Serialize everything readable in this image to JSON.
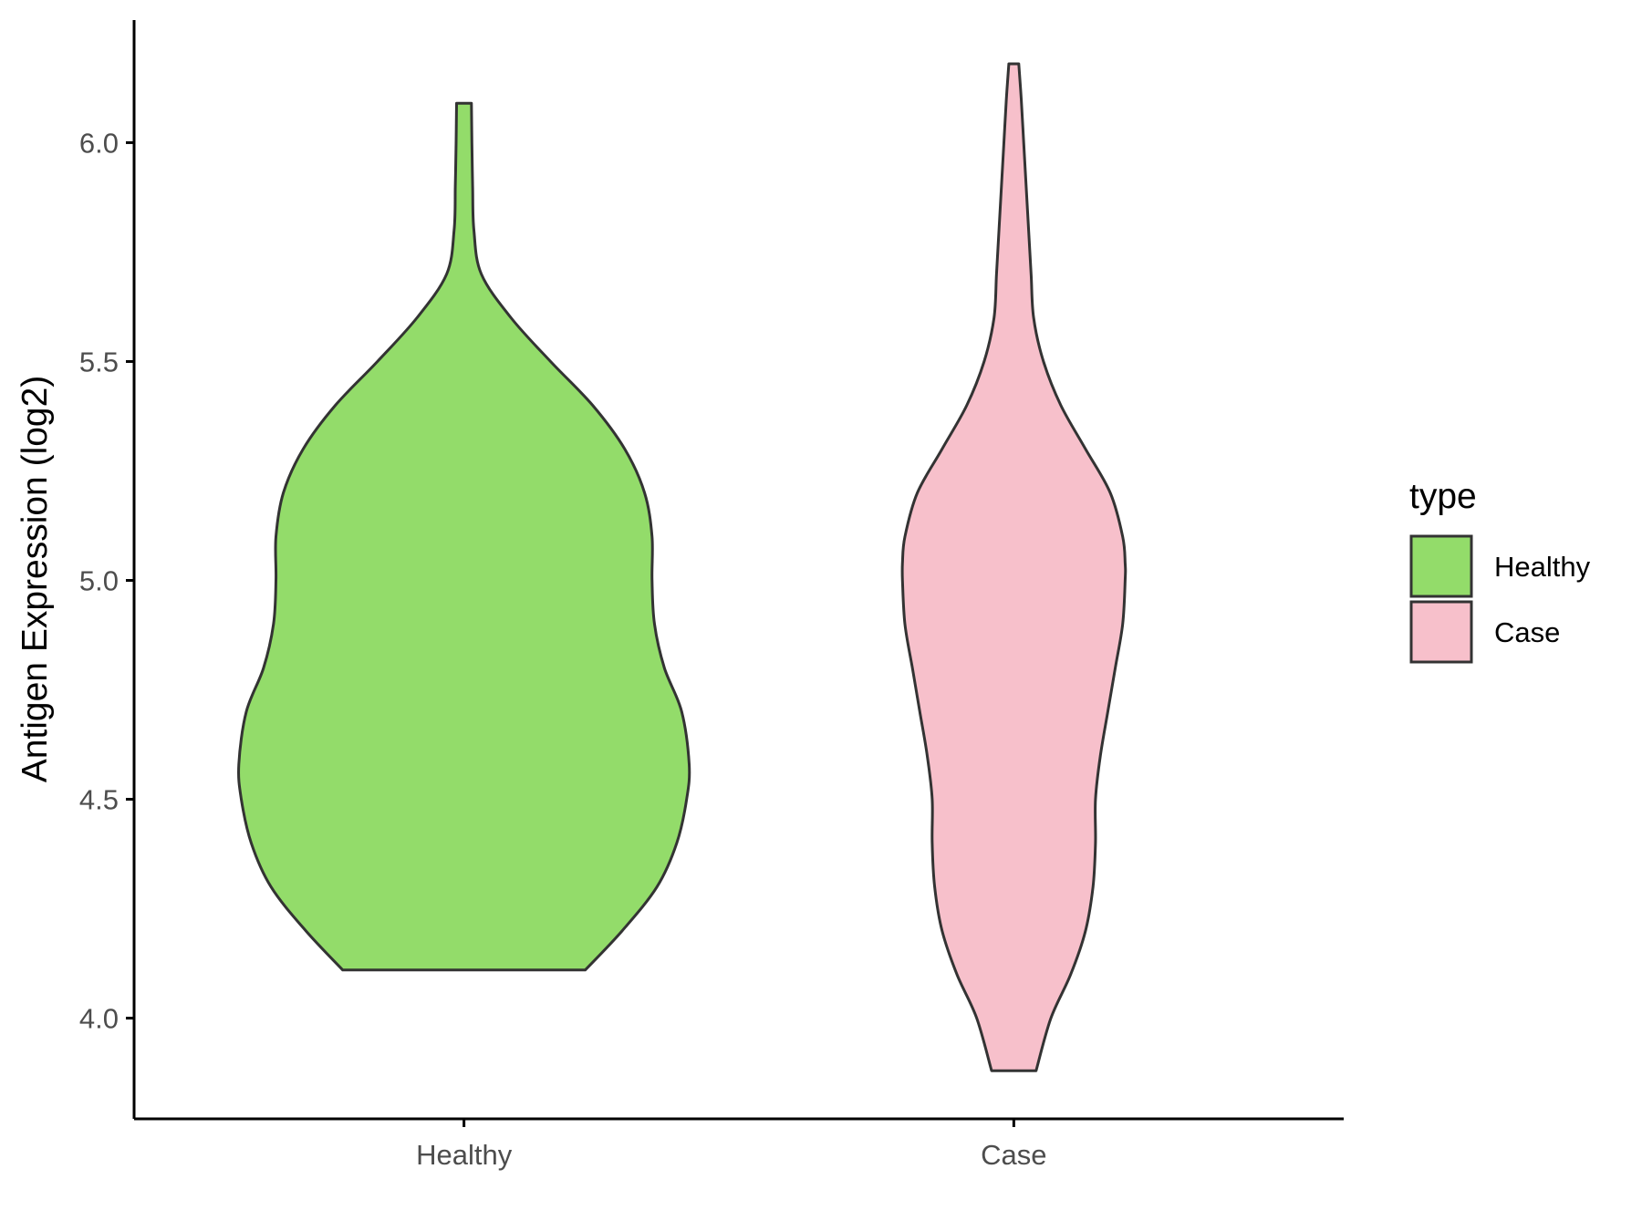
{
  "chart_data": {
    "type": "violin",
    "title": "",
    "xlabel": "",
    "ylabel": "Antigen Expression (log2)",
    "ylim": [
      3.77,
      6.28
    ],
    "y_ticks": [
      {
        "value": 4.0,
        "label": "4.0"
      },
      {
        "value": 4.5,
        "label": "4.5"
      },
      {
        "value": 5.0,
        "label": "5.0"
      },
      {
        "value": 5.5,
        "label": "5.5"
      },
      {
        "value": 6.0,
        "label": "6.0"
      }
    ],
    "categories": [
      "Healthy",
      "Case"
    ],
    "grid": false,
    "legend": {
      "title": "type",
      "position": "right",
      "entries": [
        {
          "label": "Healthy",
          "color": "#93DC6A"
        },
        {
          "label": "Case",
          "color": "#F7C0CB"
        }
      ]
    },
    "series": [
      {
        "name": "Healthy",
        "color": "#93DC6A",
        "min": 4.11,
        "max": 6.09,
        "density_profile": [
          {
            "y": 4.11,
            "half_width": 0.49
          },
          {
            "y": 4.2,
            "half_width": 0.64
          },
          {
            "y": 4.3,
            "half_width": 0.78
          },
          {
            "y": 4.4,
            "half_width": 0.86
          },
          {
            "y": 4.5,
            "half_width": 0.9
          },
          {
            "y": 4.58,
            "half_width": 0.91
          },
          {
            "y": 4.7,
            "half_width": 0.88
          },
          {
            "y": 4.8,
            "half_width": 0.81
          },
          {
            "y": 4.9,
            "half_width": 0.77
          },
          {
            "y": 5.0,
            "half_width": 0.76
          },
          {
            "y": 5.1,
            "half_width": 0.76
          },
          {
            "y": 5.2,
            "half_width": 0.73
          },
          {
            "y": 5.3,
            "half_width": 0.65
          },
          {
            "y": 5.4,
            "half_width": 0.52
          },
          {
            "y": 5.5,
            "half_width": 0.35
          },
          {
            "y": 5.6,
            "half_width": 0.19
          },
          {
            "y": 5.7,
            "half_width": 0.07
          },
          {
            "y": 5.8,
            "half_width": 0.04
          },
          {
            "y": 5.9,
            "half_width": 0.035
          },
          {
            "y": 6.0,
            "half_width": 0.032
          },
          {
            "y": 6.09,
            "half_width": 0.03
          }
        ]
      },
      {
        "name": "Case",
        "color": "#F7C0CB",
        "min": 3.88,
        "max": 6.18,
        "density_profile": [
          {
            "y": 3.88,
            "half_width": 0.09
          },
          {
            "y": 4.0,
            "half_width": 0.15
          },
          {
            "y": 4.1,
            "half_width": 0.23
          },
          {
            "y": 4.2,
            "half_width": 0.29
          },
          {
            "y": 4.3,
            "half_width": 0.32
          },
          {
            "y": 4.4,
            "half_width": 0.33
          },
          {
            "y": 4.5,
            "half_width": 0.33
          },
          {
            "y": 4.6,
            "half_width": 0.35
          },
          {
            "y": 4.7,
            "half_width": 0.38
          },
          {
            "y": 4.8,
            "half_width": 0.41
          },
          {
            "y": 4.9,
            "half_width": 0.44
          },
          {
            "y": 5.0,
            "half_width": 0.45
          },
          {
            "y": 5.04,
            "half_width": 0.45
          },
          {
            "y": 5.1,
            "half_width": 0.44
          },
          {
            "y": 5.2,
            "half_width": 0.39
          },
          {
            "y": 5.3,
            "half_width": 0.29
          },
          {
            "y": 5.4,
            "half_width": 0.19
          },
          {
            "y": 5.5,
            "half_width": 0.12
          },
          {
            "y": 5.6,
            "half_width": 0.08
          },
          {
            "y": 5.7,
            "half_width": 0.07
          },
          {
            "y": 5.8,
            "half_width": 0.06
          },
          {
            "y": 5.9,
            "half_width": 0.05
          },
          {
            "y": 6.0,
            "half_width": 0.04
          },
          {
            "y": 6.1,
            "half_width": 0.03
          },
          {
            "y": 6.18,
            "half_width": 0.02
          }
        ]
      }
    ]
  }
}
